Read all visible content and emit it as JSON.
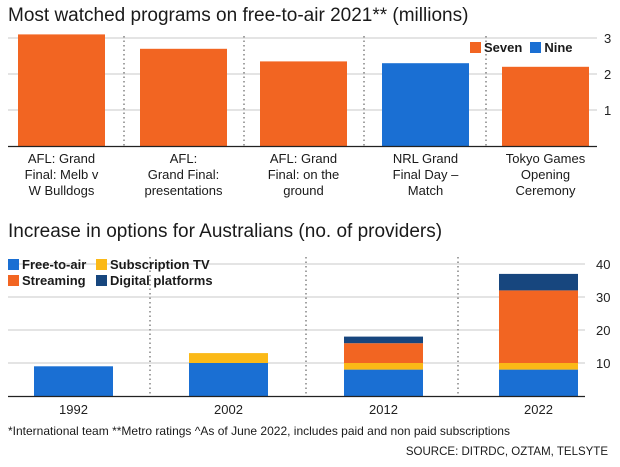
{
  "chart_data": [
    {
      "type": "bar",
      "title": "Most watched programs on free-to-air 2021** (millions)",
      "categories": [
        "AFL: Grand Final: Melb v W Bulldogs",
        "AFL: Grand Final: presentations",
        "AFL: Grand Final: on the ground",
        "NRL Grand Final Day – Match",
        "Tokyo Games Opening Ceremony"
      ],
      "category_lines": [
        [
          "AFL: Grand",
          "Final: Melb v",
          "W Bulldogs"
        ],
        [
          "AFL:",
          "Grand Final:",
          "presentations"
        ],
        [
          "AFL: Grand",
          "Final: on the",
          "ground"
        ],
        [
          "NRL Grand",
          "Final Day –",
          "Match"
        ],
        [
          "Tokyo Games",
          "Opening",
          "Ceremony"
        ]
      ],
      "values": [
        3.1,
        2.7,
        2.35,
        2.3,
        2.2
      ],
      "network": [
        "Seven",
        "Seven",
        "Seven",
        "Nine",
        "Seven"
      ],
      "legend": [
        {
          "name": "Seven",
          "color": "#f26522"
        },
        {
          "name": "Nine",
          "color": "#1a6fd3"
        }
      ],
      "yticks": [
        "1",
        "2",
        "3"
      ],
      "ylim": [
        0,
        3.1
      ],
      "legend_position": "top-right"
    },
    {
      "type": "bar",
      "stacked": true,
      "title": "Increase in options for Australians (no. of providers)",
      "categories": [
        "1992",
        "2002",
        "2012",
        "2022"
      ],
      "series": [
        {
          "name": "Free-to-air",
          "color": "#1a6fd3",
          "values": [
            9,
            10,
            8,
            8
          ]
        },
        {
          "name": "Subscription TV",
          "color": "#fbb917",
          "values": [
            0,
            3,
            2,
            2
          ]
        },
        {
          "name": "Streaming",
          "color": "#f26522",
          "values": [
            0,
            0,
            6,
            22
          ]
        },
        {
          "name": "Digital platforms",
          "color": "#17467e",
          "values": [
            0,
            0,
            2,
            5
          ]
        }
      ],
      "yticks": [
        "10",
        "20",
        "30",
        "40"
      ],
      "ylim": [
        0,
        40
      ],
      "legend_position": "top-left"
    }
  ],
  "footnote": "*International team   **Metro ratings   ^As of June 2022, includes paid and non paid subscriptions",
  "source": "SOURCE: DITRDC, OZTAM, TELSYTE"
}
